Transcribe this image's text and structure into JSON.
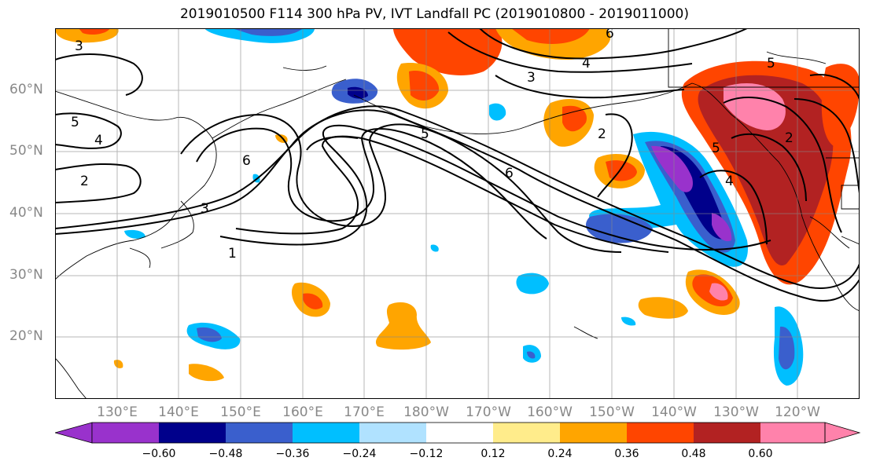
{
  "title": "2019010500 F114 300 hPa PV, IVT Landfall PC (2019010800 - 2019011000)",
  "map": {
    "projection": "PlateCarree",
    "extent": {
      "lon_min": 120,
      "lon_max": 250,
      "lat_min": 10,
      "lat_max": 70
    },
    "lat_labels": [
      "20°N",
      "30°N",
      "40°N",
      "50°N",
      "60°N"
    ],
    "lon_labels": [
      "130°E",
      "140°E",
      "150°E",
      "160°E",
      "170°E",
      "180°W",
      "170°W",
      "160°W",
      "150°W",
      "140°W",
      "130°W",
      "120°W"
    ],
    "contour_labels": [
      "3",
      "5",
      "4",
      "2",
      "6",
      "3",
      "1",
      "6",
      "5",
      "6",
      "3",
      "4",
      "2",
      "5",
      "5",
      "4",
      "2"
    ],
    "grid": true,
    "coastline_color": "#000000"
  },
  "colorbar": {
    "extend": "both",
    "colors": [
      "#9932cc",
      "#00008b",
      "#3a5fcd",
      "#00bfff",
      "#b0e2ff",
      "#ffffff",
      "#ffec8b",
      "#ffa500",
      "#ff4500",
      "#b22222",
      "#ff82ab"
    ],
    "tick_labels": [
      "−0.60",
      "−0.48",
      "−0.36",
      "−0.24",
      "−0.12",
      "0.12",
      "0.24",
      "0.36",
      "0.48",
      "0.60"
    ]
  }
}
